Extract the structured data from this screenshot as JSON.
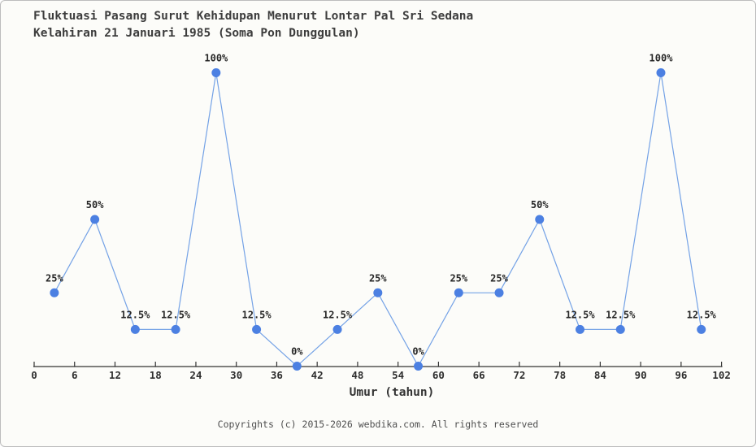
{
  "chart_data": {
    "type": "line",
    "title": "Fluktuasi Pasang Surut Kehidupan Menurut Lontar Pal Sri Sedana",
    "subtitle": "Kelahiran 21 Januari 1985 (Soma Pon Dunggulan)",
    "xlabel": "Umur (tahun)",
    "ylabel": "",
    "x": [
      3,
      9,
      15,
      21,
      27,
      33,
      39,
      45,
      51,
      57,
      63,
      69,
      75,
      81,
      87,
      93,
      99
    ],
    "values": [
      25,
      50,
      12.5,
      12.5,
      100,
      12.5,
      0,
      12.5,
      25,
      0,
      25,
      25,
      50,
      12.5,
      12.5,
      100,
      12.5
    ],
    "point_labels": [
      "25%",
      "50%",
      "12.5%",
      "12.5%",
      "100%",
      "12.5%",
      "0%",
      "12.5%",
      "25%",
      "0%",
      "25%",
      "25%",
      "50%",
      "12.5%",
      "12.5%",
      "100%",
      "12.5%"
    ],
    "x_ticks": [
      0,
      6,
      12,
      18,
      24,
      30,
      36,
      42,
      48,
      54,
      60,
      66,
      72,
      78,
      84,
      90,
      96,
      102
    ],
    "xlim": [
      0,
      102
    ],
    "ylim": [
      0,
      100
    ],
    "grid": false,
    "legend": "none",
    "colors": {
      "marker": "#4c80e2",
      "line": "#74a2e6",
      "axis": "#333333"
    }
  },
  "footer": {
    "text": "Copyrights (c) 2015-2026 webdika.com. All rights reserved"
  }
}
